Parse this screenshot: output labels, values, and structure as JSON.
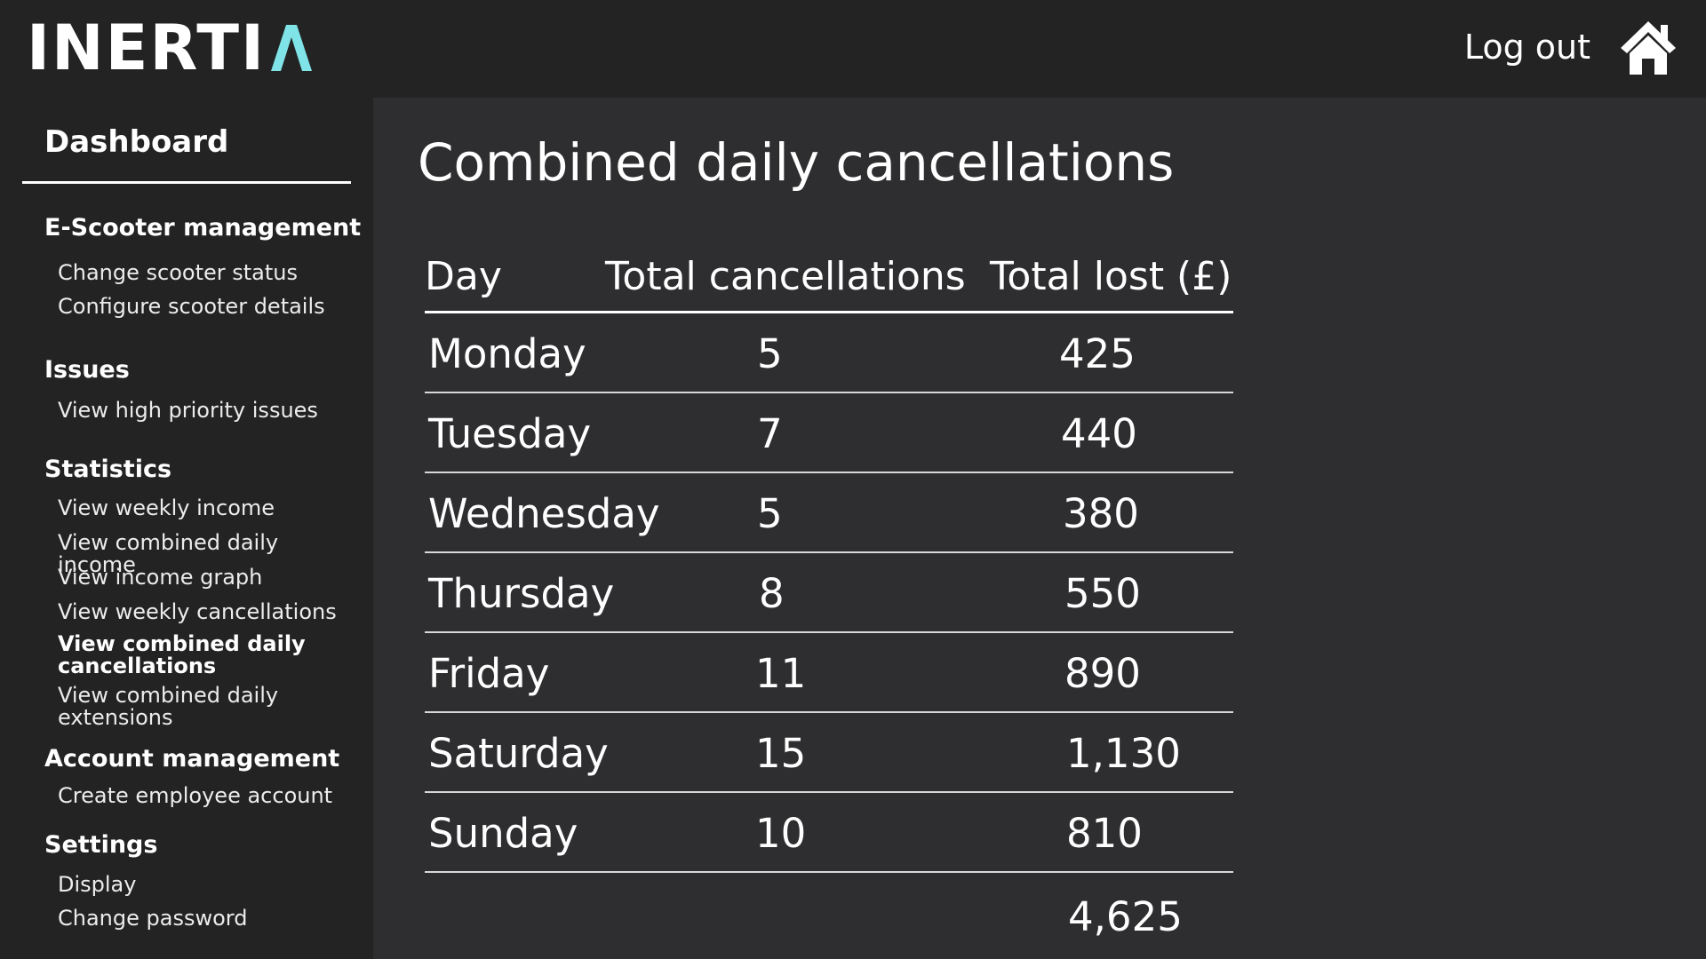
{
  "header": {
    "logo_text": "INERTI",
    "logo_accent_letter": "Λ",
    "logo_accent_color": "#7fe3e8",
    "logout_label": "Log out",
    "home_icon": "home-icon"
  },
  "sidebar": {
    "dashboard_label": "Dashboard",
    "sections": [
      {
        "title": "E-Scooter management",
        "items": [
          "Change scooter status",
          "Configure scooter details"
        ]
      },
      {
        "title": "Issues",
        "items": [
          "View high priority issues"
        ]
      },
      {
        "title": "Statistics",
        "items": [
          "View weekly income",
          "View combined daily income",
          "View income graph",
          "View weekly cancellations",
          "View combined daily cancellations",
          "View combined daily extensions"
        ]
      },
      {
        "title": "Account management",
        "items": [
          "Create employee account"
        ]
      },
      {
        "title": "Settings",
        "items": [
          "Display",
          "Change password"
        ]
      }
    ],
    "active_item": "View combined daily cancellations"
  },
  "main": {
    "title": "Combined daily cancellations",
    "columns": [
      "Day",
      "Total cancellations",
      "Total lost (£)"
    ],
    "rows": [
      {
        "day": "Monday",
        "cancellations": "5",
        "lost": "425"
      },
      {
        "day": "Tuesday",
        "cancellations": "7",
        "lost": "440"
      },
      {
        "day": "Wednesday",
        "cancellations": "5",
        "lost": "380"
      },
      {
        "day": "Thursday",
        "cancellations": "8",
        "lost": "550"
      },
      {
        "day": "Friday",
        "cancellations": "11",
        "lost": "890"
      },
      {
        "day": "Saturday",
        "cancellations": "15",
        "lost": "1,130"
      },
      {
        "day": "Sunday",
        "cancellations": "10",
        "lost": "810"
      }
    ],
    "total_lost": "4,625"
  }
}
